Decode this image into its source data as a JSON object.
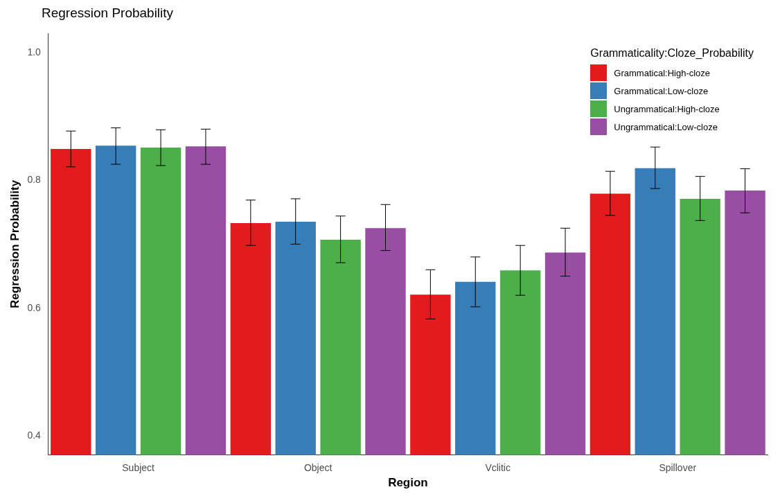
{
  "chart_data": {
    "type": "bar",
    "title": "Regression Probability",
    "xlabel": "Region",
    "ylabel": "Regression Probability",
    "legend_title": "Grammaticality:Cloze_Probability",
    "categories": [
      "Subject",
      "Object",
      "Vclitic",
      "Spillover"
    ],
    "series": [
      {
        "name": "Grammatical:High-cloze",
        "color": "#e41a1c",
        "values": [
          0.849,
          0.733,
          0.621,
          0.779
        ],
        "errors": [
          [
            0.821,
            0.877
          ],
          [
            0.698,
            0.769
          ],
          [
            0.583,
            0.66
          ],
          [
            0.745,
            0.814
          ]
        ]
      },
      {
        "name": "Grammatical:Low-cloze",
        "color": "#377eb8",
        "values": [
          0.854,
          0.735,
          0.641,
          0.819
        ],
        "errors": [
          [
            0.825,
            0.882
          ],
          [
            0.7,
            0.771
          ],
          [
            0.602,
            0.68
          ],
          [
            0.787,
            0.852
          ]
        ]
      },
      {
        "name": "Ungrammatical:High-cloze",
        "color": "#4daf4a",
        "values": [
          0.851,
          0.707,
          0.659,
          0.771
        ],
        "errors": [
          [
            0.823,
            0.879
          ],
          [
            0.671,
            0.744
          ],
          [
            0.62,
            0.698
          ],
          [
            0.737,
            0.806
          ]
        ]
      },
      {
        "name": "Ungrammatical:Low-cloze",
        "color": "#984ea3",
        "values": [
          0.853,
          0.725,
          0.687,
          0.784
        ],
        "errors": [
          [
            0.825,
            0.88
          ],
          [
            0.69,
            0.762
          ],
          [
            0.65,
            0.725
          ],
          [
            0.749,
            0.818
          ]
        ]
      }
    ],
    "ylim": [
      0.37,
      1.03
    ],
    "yticks": [
      0.4,
      0.6,
      0.8,
      {
        "value": 1,
        "label": "1.0"
      }
    ],
    "grid": false,
    "legend": "top right"
  }
}
